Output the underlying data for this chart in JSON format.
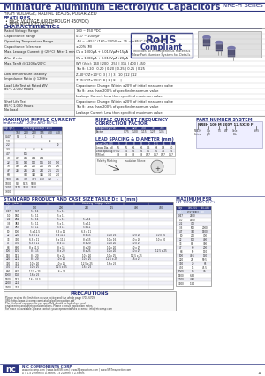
{
  "title": "Miniature Aluminum Electrolytic Capacitors",
  "series": "NRE-H Series",
  "hc": "#2d3580",
  "bg": "#ffffff",
  "gray_bg": "#e8e8e8",
  "light_blue": "#dde3f0",
  "features": [
    "HIGH VOLTAGE (UP THROUGH 450VDC)",
    "NEW REDUCED SIZES"
  ],
  "char_rows": [
    [
      "Rated Voltage Range",
      "160 ~ 450 VDC"
    ],
    [
      "Capacitance Range",
      "0.47 ~ 1000μF"
    ],
    [
      "Operating Temperature Range",
      "-40 ~ +85°C (160~200V) or -25 ~ +85°C (315 ~ 450V)"
    ],
    [
      "Capacitance Tolerance",
      "±20% (M)"
    ],
    [
      "Max. Leakage Current @ (20°C)  After 1 min",
      "CV x 1000μA + 0.01CVμA+15μA"
    ],
    [
      "After 2 min",
      "CV x 1000μA + 0.01CVμA+20μA"
    ],
    [
      "Max. Tan δ @ 120Hz/20°C",
      "WV (Vdc): 160 | 200 | 250 | 315 | 400 | 450"
    ],
    [
      "",
      "Tan δ: 0.20 | 0.20 | 0.20 | 0.25 | 0.25 | 0.25"
    ],
    [
      "Low Temperature Stability\nImpedance Ratio @ 120Hz",
      "Z-40°C/Z+20°C: 3 | 3 | 3 | 10 | 12 | 12"
    ],
    [
      "",
      "Z-25°C/Z+20°C: 8 | 8 | 8 | - | - | -"
    ],
    [
      "Load Life Test at Rated WV\n85°C 2,000 Hours",
      "Capacitance Change: Within ±20% of initial measured value"
    ],
    [
      "",
      "Tan δ: Less than 200% of specified maximum value"
    ],
    [
      "",
      "Leakage Current: Less than specified maximum value"
    ],
    [
      "Shelf Life Test\n85°C 1,000 Hours\nNo Load",
      "Capacitance Change: Within ±20% of initial measured value"
    ],
    [
      "",
      "Tan δ: Less than 200% of specified maximum value"
    ],
    [
      "",
      "Leakage Current: Less than specified maximum value"
    ]
  ],
  "ripple_caps": [
    "0.47",
    "1.0",
    "2.2",
    "3.3",
    "4.7",
    "10",
    "22",
    "33",
    "47",
    "68",
    "100",
    "1000",
    "2200",
    "3300"
  ],
  "ripple_vols": [
    "160",
    "200",
    "250",
    "315",
    "400",
    "450"
  ],
  "ripple_vals": [
    [
      "55",
      "71",
      "72",
      "84",
      "",
      ""
    ],
    [
      "",
      "",
      "",
      "",
      "46",
      ""
    ],
    [
      "",
      "",
      "",
      "",
      "",
      "60"
    ],
    [
      "",
      "45",
      "48",
      "60",
      "",
      ""
    ],
    [
      "",
      "105",
      "",
      "",
      "",
      ""
    ],
    [
      "195",
      "160",
      "164",
      "184",
      "",
      ""
    ],
    [
      "133",
      "160",
      "110",
      "175",
      "140",
      "180"
    ],
    [
      "160",
      "210",
      "200",
      "205",
      "180",
      "200"
    ],
    [
      "240",
      "265",
      "255",
      "260",
      "215",
      "285"
    ],
    [
      "",
      "300",
      "340",
      "345",
      "340",
      "270"
    ],
    [
      "610",
      "430",
      "4.52",
      "6.60",
      "400",
      "-"
    ],
    [
      "550",
      "5575",
      "5688",
      "",
      "",
      ""
    ],
    [
      "7170",
      "7180",
      "7180",
      "",
      "",
      ""
    ],
    [
      "",
      "",
      "",
      "",
      "",
      ""
    ]
  ],
  "freq_vals": [
    [
      "50",
      "120",
      "300",
      "1k",
      "10k"
    ],
    [
      "0.75",
      "1.00",
      "1.15",
      "1.25",
      "1.35"
    ],
    [
      "0.75",
      "1.00",
      "1.15",
      "1.25",
      "1.35"
    ]
  ],
  "lead_sizes": [
    "5",
    "6.3",
    "8",
    "8.5",
    "10",
    "12.5",
    "16",
    "18"
  ],
  "lead_dia": [
    "0.5",
    "0.5",
    "0.6",
    "0.6",
    "0.6",
    "0.8",
    "0.8",
    "1.0"
  ],
  "lead_sp": [
    "2.0",
    "2.5",
    "3.5",
    "3.5",
    "5.0",
    "5.0",
    "7.5",
    "7.5"
  ],
  "lead_pn": [
    "0.3",
    "0.3",
    "0.3",
    "0.3",
    "0.57",
    "0.57",
    "0.57",
    "0.57"
  ],
  "std_caps": [
    "0.47",
    "1.0",
    "2.2",
    "3.3",
    "4.7",
    "10",
    "22",
    "33",
    "47",
    "68",
    "100",
    "150",
    "220",
    "330",
    "470",
    "680",
    "1000",
    "1500",
    "2200",
    "3300"
  ],
  "std_codes": [
    "R47",
    "1R0",
    "2R2",
    "3R3",
    "4R7",
    "100",
    "220",
    "330",
    "470",
    "680",
    "101",
    "151",
    "221",
    "331",
    "471",
    "681",
    "102",
    "152",
    "222",
    "332"
  ],
  "std_160": [
    "5 x 11",
    "5 x 11",
    "5 x 11",
    "5 x 11",
    "5 x 11",
    "5 x 11.5",
    "6.3 x 11",
    "6.3 x 11",
    "6.3 x 11",
    "8 x 11.5",
    "8 x 15",
    "8 x 20",
    "8 x 20",
    "10 x 20",
    "10 x 25",
    "12.5 x 25",
    "16 x 25",
    "16 x 35.5",
    "",
    ""
  ],
  "std_200": [
    "5 x 11",
    "5 x 11",
    "5 x 11",
    "5 x 11",
    "5 x 11",
    "6.3 x 11",
    "8 x 11.5",
    "8 x 11.5",
    "8 x 15",
    "8 x 15",
    "8 x 20",
    "8 x 25",
    "10 x 20",
    "10 x 25",
    "12.5 x 25",
    "16 x 25",
    "",
    "",
    "",
    ""
  ],
  "std_250": [
    "",
    "",
    "5 x 11",
    "5 x 11",
    "5 x 11",
    "6.3 x 11",
    "8 x 15",
    "8 x 15",
    "8 x 20",
    "8 x 20",
    "8 x 25",
    "10 x 20",
    "10 x 25",
    "12.5 x 25",
    "16 x 25",
    "",
    "",
    "",
    "",
    ""
  ],
  "std_315": [
    "",
    "",
    "",
    "",
    "",
    "",
    "10 x 16",
    "10 x 16",
    "10 x 20",
    "10 x 20",
    "10 x 20",
    "10 x 25",
    "12.5 x 25",
    "16 x 25",
    "",
    "",
    "",
    "",
    "",
    ""
  ],
  "std_400": [
    "",
    "",
    "",
    "",
    "",
    "",
    "10 x 20",
    "10 x 20",
    "10 x 25",
    "10 x 25",
    "10 x 25",
    "12.5 x 25",
    "16 x 25",
    "",
    "",
    "",
    "",
    "",
    "",
    ""
  ],
  "std_450": [
    "",
    "",
    "",
    "",
    "",
    "",
    "10 x 20",
    "10 x 20",
    "",
    "",
    "12.5 x 25",
    "",
    "",
    "",
    "",
    "",
    "",
    "",
    "",
    ""
  ],
  "esr_caps": [
    "0.47",
    "1.0",
    "2.2",
    "3.3",
    "4.7",
    "10",
    "22",
    "33",
    "47",
    "68",
    "100",
    "220",
    "330",
    "470",
    "1000",
    "1500",
    "2200",
    "3300"
  ],
  "esr_160_200": [
    "2500",
    "1500",
    "700",
    "500",
    "380",
    "200",
    "100",
    "80",
    "60",
    "50",
    "40.5",
    "28",
    "20",
    "15",
    "10",
    "6.32",
    "4.81",
    "1.54"
  ],
  "esr_250_450": [
    "",
    "",
    "",
    "2000",
    "1500",
    "700",
    "400",
    "300",
    "200",
    "170",
    "130",
    "90.5",
    "65",
    "45.5",
    "30",
    "",
    "",
    ""
  ],
  "footer_left": "NIC COMPONENTS CORP.",
  "footer_urls": "www.niccomp.com | www.lowESR.com | www.NJcapacitors.com | www.SMTmagnetics.com",
  "footer_note": "D = L x 20(mm) = D.Series; L x 20(mm) = Z.Series"
}
